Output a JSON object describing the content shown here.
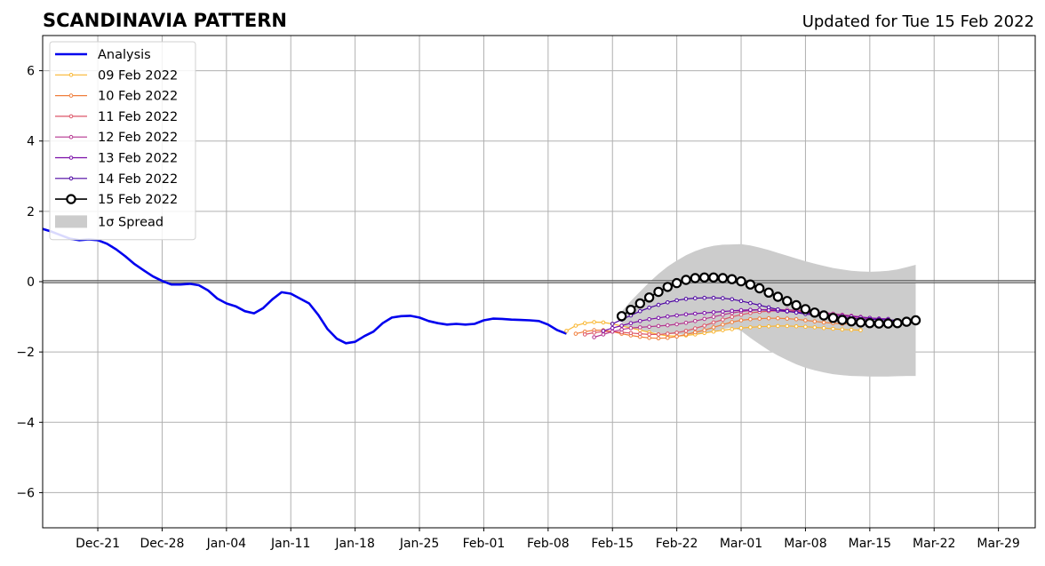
{
  "chart_data": {
    "type": "line",
    "title": "SCANDINAVIA PATTERN",
    "subtitle": "Updated for Tue 15 Feb 2022",
    "xlabel": "",
    "ylabel": "",
    "x_range": [
      "2021-12-15",
      "2022-04-02"
    ],
    "ylim": [
      -7,
      7
    ],
    "grid": true,
    "legend_position": "upper-left",
    "x_ticks": [
      {
        "date": "2021-12-21",
        "label": "Dec-21"
      },
      {
        "date": "2021-12-28",
        "label": "Dec-28"
      },
      {
        "date": "2022-01-04",
        "label": "Jan-04"
      },
      {
        "date": "2022-01-11",
        "label": "Jan-11"
      },
      {
        "date": "2022-01-18",
        "label": "Jan-18"
      },
      {
        "date": "2022-01-25",
        "label": "Jan-25"
      },
      {
        "date": "2022-02-01",
        "label": "Feb-01"
      },
      {
        "date": "2022-02-08",
        "label": "Feb-08"
      },
      {
        "date": "2022-02-15",
        "label": "Feb-15"
      },
      {
        "date": "2022-02-22",
        "label": "Feb-22"
      },
      {
        "date": "2022-03-01",
        "label": "Mar-01"
      },
      {
        "date": "2022-03-08",
        "label": "Mar-08"
      },
      {
        "date": "2022-03-15",
        "label": "Mar-15"
      },
      {
        "date": "2022-03-22",
        "label": "Mar-22"
      },
      {
        "date": "2022-03-29",
        "label": "Mar-29"
      }
    ],
    "y_ticks": [
      {
        "value": -6,
        "label": "−6"
      },
      {
        "value": -4,
        "label": "−4"
      },
      {
        "value": -2,
        "label": "−2"
      },
      {
        "value": 0,
        "label": "0"
      },
      {
        "value": 2,
        "label": "2"
      },
      {
        "value": 4,
        "label": "4"
      },
      {
        "value": 6,
        "label": "6"
      }
    ],
    "analysis": {
      "name": "Analysis",
      "color": "#0000ee",
      "start_date": "2021-12-15",
      "values": [
        1.5,
        1.42,
        1.32,
        1.22,
        1.18,
        1.2,
        1.18,
        1.08,
        0.92,
        0.72,
        0.5,
        0.32,
        0.15,
        0.02,
        -0.08,
        -0.08,
        -0.06,
        -0.1,
        -0.25,
        -0.48,
        -0.62,
        -0.7,
        -0.84,
        -0.9,
        -0.75,
        -0.5,
        -0.3,
        -0.34,
        -0.48,
        -0.62,
        -0.95,
        -1.35,
        -1.62,
        -1.75,
        -1.71,
        -1.55,
        -1.42,
        -1.18,
        -1.02,
        -0.98,
        -0.97,
        -1.02,
        -1.12,
        -1.18,
        -1.22,
        -1.2,
        -1.22,
        -1.2,
        -1.1,
        -1.05,
        -1.06,
        -1.08,
        -1.09,
        -1.1,
        -1.12,
        -1.22,
        -1.38,
        -1.48
      ]
    },
    "forecasts": [
      {
        "name": "09 Feb 2022",
        "color": "#f9b630",
        "start_date": "2022-02-10",
        "values": [
          -1.4,
          -1.25,
          -1.18,
          -1.15,
          -1.16,
          -1.2,
          -1.26,
          -1.32,
          -1.38,
          -1.44,
          -1.5,
          -1.54,
          -1.55,
          -1.53,
          -1.5,
          -1.46,
          -1.42,
          -1.38,
          -1.35,
          -1.32,
          -1.3,
          -1.28,
          -1.27,
          -1.26,
          -1.26,
          -1.27,
          -1.28,
          -1.3,
          -1.32,
          -1.34,
          -1.36,
          -1.37,
          -1.38
        ]
      },
      {
        "name": "10 Feb 2022",
        "color": "#f07e3c",
        "start_date": "2022-02-11",
        "values": [
          -1.48,
          -1.42,
          -1.38,
          -1.38,
          -1.42,
          -1.48,
          -1.53,
          -1.57,
          -1.6,
          -1.61,
          -1.6,
          -1.56,
          -1.5,
          -1.44,
          -1.38,
          -1.3,
          -1.22,
          -1.15,
          -1.1,
          -1.07,
          -1.05,
          -1.04,
          -1.04,
          -1.05,
          -1.07,
          -1.1,
          -1.13,
          -1.16,
          -1.18,
          -1.2,
          -1.2,
          -1.19
        ]
      },
      {
        "name": "11 Feb 2022",
        "color": "#dd5668",
        "start_date": "2022-02-12",
        "values": [
          -1.5,
          -1.45,
          -1.42,
          -1.42,
          -1.44,
          -1.46,
          -1.48,
          -1.5,
          -1.5,
          -1.48,
          -1.45,
          -1.4,
          -1.33,
          -1.25,
          -1.16,
          -1.08,
          -1.0,
          -0.94,
          -0.89,
          -0.86,
          -0.84,
          -0.83,
          -0.83,
          -0.84,
          -0.86,
          -0.88,
          -0.91,
          -0.94,
          -0.97,
          -1.0,
          -1.02,
          -1.04
        ]
      },
      {
        "name": "12 Feb 2022",
        "color": "#b5358f",
        "start_date": "2022-02-13",
        "values": [
          -1.58,
          -1.5,
          -1.42,
          -1.36,
          -1.32,
          -1.3,
          -1.28,
          -1.26,
          -1.24,
          -1.21,
          -1.17,
          -1.12,
          -1.06,
          -1.0,
          -0.94,
          -0.89,
          -0.85,
          -0.82,
          -0.8,
          -0.79,
          -0.79,
          -0.8,
          -0.81,
          -0.83,
          -0.85,
          -0.88,
          -0.91,
          -0.94,
          -0.97,
          -1.0,
          -1.03,
          -1.05
        ]
      },
      {
        "name": "13 Feb 2022",
        "color": "#7a0ea8",
        "start_date": "2022-02-14",
        "values": [
          -1.4,
          -1.32,
          -1.25,
          -1.18,
          -1.12,
          -1.07,
          -1.03,
          -0.99,
          -0.96,
          -0.93,
          -0.91,
          -0.89,
          -0.87,
          -0.85,
          -0.83,
          -0.81,
          -0.8,
          -0.8,
          -0.81,
          -0.83,
          -0.85,
          -0.87,
          -0.89,
          -0.91,
          -0.93,
          -0.95,
          -0.97,
          -0.99,
          -1.01,
          -1.03,
          -1.05,
          -1.06
        ]
      },
      {
        "name": "14 Feb 2022",
        "color": "#4c03a2",
        "start_date": "2022-02-15",
        "values": [
          -1.2,
          -1.08,
          -0.96,
          -0.84,
          -0.74,
          -0.66,
          -0.59,
          -0.53,
          -0.49,
          -0.47,
          -0.46,
          -0.46,
          -0.47,
          -0.5,
          -0.55,
          -0.61,
          -0.67,
          -0.73,
          -0.79,
          -0.84,
          -0.88,
          -0.92,
          -0.95,
          -0.98,
          -1.0,
          -1.02,
          -1.04,
          -1.06,
          -1.07,
          -1.08,
          -1.09,
          -1.1
        ]
      },
      {
        "name": "15 Feb 2022",
        "color": "#000000",
        "start_date": "2022-02-16",
        "values": [
          -0.98,
          -0.8,
          -0.62,
          -0.45,
          -0.29,
          -0.15,
          -0.04,
          0.05,
          0.1,
          0.12,
          0.12,
          0.1,
          0.07,
          0.01,
          -0.08,
          -0.19,
          -0.31,
          -0.43,
          -0.55,
          -0.67,
          -0.78,
          -0.88,
          -0.96,
          -1.03,
          -1.09,
          -1.13,
          -1.16,
          -1.18,
          -1.19,
          -1.19,
          -1.18,
          -1.14,
          -1.1
        ]
      }
    ],
    "spread": {
      "name": "1σ Spread",
      "color": "#cccccc",
      "start_date": "2022-02-16",
      "upper": [
        -0.85,
        -0.55,
        -0.28,
        -0.02,
        0.22,
        0.43,
        0.6,
        0.75,
        0.87,
        0.96,
        1.02,
        1.05,
        1.06,
        1.07,
        1.03,
        0.97,
        0.9,
        0.82,
        0.74,
        0.66,
        0.58,
        0.51,
        0.45,
        0.39,
        0.35,
        0.31,
        0.29,
        0.28,
        0.29,
        0.31,
        0.35,
        0.41,
        0.48
      ],
      "lower": [
        -1.25,
        -1.32,
        -1.38,
        -1.42,
        -1.46,
        -1.48,
        -1.5,
        -1.5,
        -1.49,
        -1.46,
        -1.42,
        -1.35,
        -1.3,
        -1.4,
        -1.6,
        -1.78,
        -1.95,
        -2.1,
        -2.23,
        -2.35,
        -2.45,
        -2.52,
        -2.58,
        -2.63,
        -2.66,
        -2.68,
        -2.69,
        -2.7,
        -2.7,
        -2.7,
        -2.69,
        -2.68,
        -2.68
      ]
    }
  }
}
